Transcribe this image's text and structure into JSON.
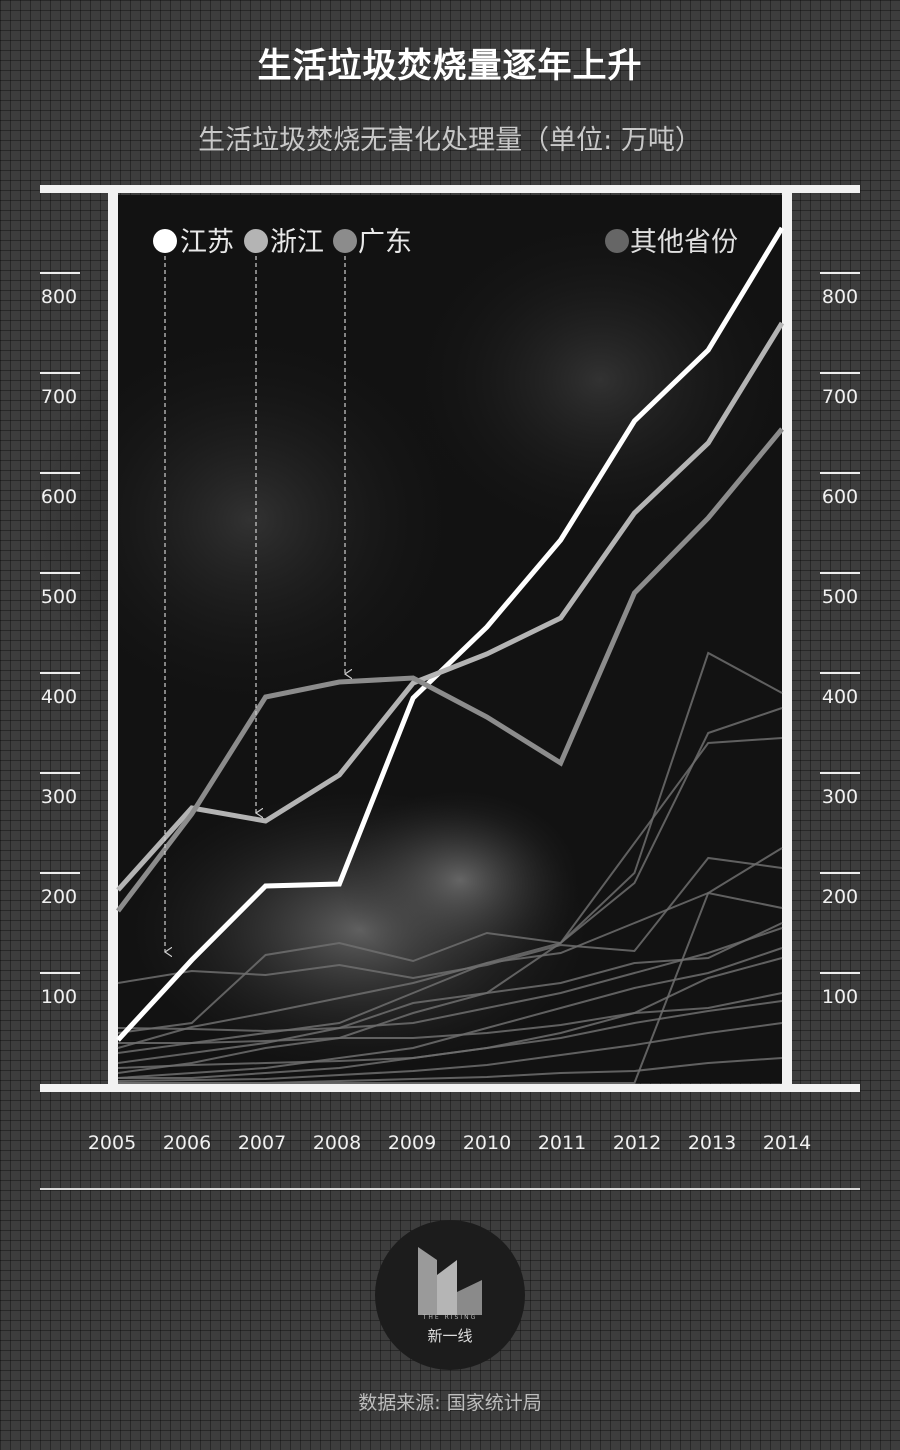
{
  "title": "生活垃圾焚烧量逐年上升",
  "subtitle": "生活垃圾焚烧无害化处理量（单位: 万吨）",
  "source": "数据来源: 国家统计局",
  "logo": {
    "cn": "新一线",
    "en": "THE RISING"
  },
  "chart_data": {
    "type": "line",
    "title": "生活垃圾焚烧量逐年上升",
    "ylabel": "单位: 万吨",
    "x": [
      "2005",
      "2006",
      "2007",
      "2008",
      "2009",
      "2010",
      "2011",
      "2012",
      "2013",
      "2014"
    ],
    "xlim": [
      2005,
      2014
    ],
    "ylim": [
      0,
      870
    ],
    "yticks": [
      100,
      200,
      300,
      400,
      500,
      600,
      700,
      800
    ],
    "grid": false,
    "legend_position": "top",
    "legend": [
      {
        "name": "江苏",
        "color": "#ffffff"
      },
      {
        "name": "浙江",
        "color": "#b4b4b4"
      },
      {
        "name": "广东",
        "color": "#8c8c8c"
      },
      {
        "name": "其他省份",
        "color": "#666666"
      }
    ],
    "series": [
      {
        "name": "江苏",
        "color": "#ffffff",
        "width": 5,
        "values": [
          43,
          123,
          197,
          199,
          385,
          456,
          543,
          662,
          733,
          855
        ]
      },
      {
        "name": "浙江",
        "color": "#b4b4b4",
        "width": 5,
        "values": [
          193,
          275,
          262,
          308,
          400,
          429,
          465,
          570,
          640,
          760
        ]
      },
      {
        "name": "广东",
        "color": "#8c8c8c",
        "width": 5,
        "values": [
          172,
          269,
          386,
          401,
          405,
          366,
          320,
          490,
          565,
          654
        ]
      },
      {
        "name": "",
        "color": "#6e6e6e",
        "width": 2,
        "values": [
          100,
          112,
          108,
          118,
          105,
          118,
          138,
          132,
          225,
          215
        ]
      },
      {
        "name": "",
        "color": "#6e6e6e",
        "width": 2,
        "values": [
          50,
          60,
          128,
          140,
          122,
          150,
          140,
          200,
          350,
          375
        ]
      },
      {
        "name": "",
        "color": "#6e6e6e",
        "width": 2,
        "values": [
          30,
          40,
          50,
          60,
          90,
          120,
          140,
          210,
          430,
          390
        ]
      },
      {
        "name": "",
        "color": "#6e6e6e",
        "width": 2,
        "values": [
          10,
          20,
          35,
          45,
          70,
          90,
          140,
          240,
          340,
          345
        ]
      },
      {
        "name": "",
        "color": "#6e6e6e",
        "width": 2,
        "values": [
          35,
          56,
          70,
          85,
          100,
          120,
          130,
          160,
          190,
          175
        ]
      },
      {
        "name": "",
        "color": "#6e6e6e",
        "width": 2,
        "values": [
          55,
          54,
          52,
          55,
          60,
          75,
          90,
          110,
          130,
          155
        ]
      },
      {
        "name": "",
        "color": "#6e6e6e",
        "width": 2,
        "values": [
          20,
          30,
          40,
          55,
          80,
          90,
          100,
          120,
          125,
          160
        ]
      },
      {
        "name": "",
        "color": "#6e6e6e",
        "width": 2,
        "values": [
          5,
          10,
          15,
          25,
          35,
          55,
          75,
          95,
          110,
          135
        ]
      },
      {
        "name": "",
        "color": "#6e6e6e",
        "width": 2,
        "values": [
          5,
          5,
          10,
          15,
          25,
          35,
          50,
          70,
          105,
          125
        ]
      },
      {
        "name": "",
        "color": "#6e6e6e",
        "width": 2,
        "values": [
          40,
          40,
          42,
          45,
          45,
          50,
          58,
          70,
          75,
          90
        ]
      },
      {
        "name": "",
        "color": "#6e6e6e",
        "width": 2,
        "values": [
          2,
          3,
          4,
          8,
          12,
          18,
          28,
          38,
          50,
          60
        ]
      },
      {
        "name": "",
        "color": "#6e6e6e",
        "width": 2,
        "values": [
          0,
          0,
          0,
          0,
          0,
          0,
          0,
          0,
          190,
          235
        ]
      },
      {
        "name": "",
        "color": "#6e6e6e",
        "width": 2,
        "values": [
          0,
          0,
          0,
          2,
          4,
          6,
          10,
          12,
          20,
          25
        ]
      },
      {
        "name": "",
        "color": "#6e6e6e",
        "width": 2,
        "values": [
          15,
          18,
          20,
          22,
          25,
          35,
          45,
          60,
          72,
          82
        ]
      }
    ]
  }
}
